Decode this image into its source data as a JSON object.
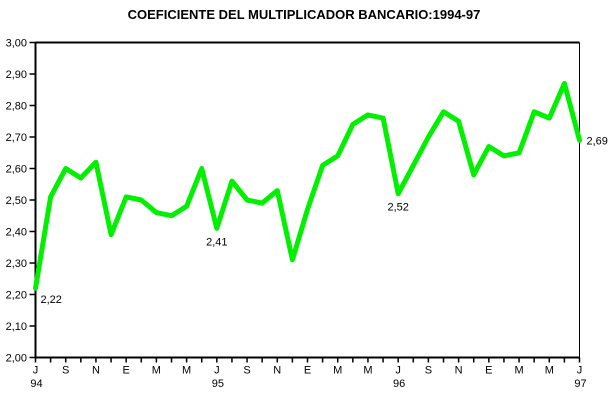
{
  "colors": {
    "background": "#ffffff",
    "axis": "#000000",
    "text": "#000000",
    "series_line": "#00f000"
  },
  "chart_data": {
    "type": "line",
    "title": "COEFICIENTE DEL MULTIPLICADOR BANCARIO:1994-97",
    "xlabel": "",
    "ylabel": "",
    "ylim": [
      2.0,
      3.0
    ],
    "grid": false,
    "legend": "none",
    "decimal_separator": ",",
    "series": [
      {
        "name": "coeficiente-multiplicador-bancario",
        "color": "#00f000",
        "x": [
          "Jul-94",
          "Ago-94",
          "Sep-94",
          "Oct-94",
          "Nov-94",
          "Dic-94",
          "Ene-95",
          "Feb-95",
          "Mar-95",
          "Abr-95",
          "May-95",
          "Jun-95",
          "Jul-95",
          "Ago-95",
          "Sep-95",
          "Oct-95",
          "Nov-95",
          "Dic-95",
          "Ene-96",
          "Feb-96",
          "Mar-96",
          "Abr-96",
          "May-96",
          "Jun-96",
          "Jul-96",
          "Ago-96",
          "Sep-96",
          "Oct-96",
          "Nov-96",
          "Dic-96",
          "Ene-97",
          "Feb-97",
          "Mar-97",
          "Abr-97",
          "May-97",
          "Jun-97",
          "Jul-97"
        ],
        "values": [
          2.22,
          2.51,
          2.6,
          2.57,
          2.62,
          2.39,
          2.51,
          2.5,
          2.46,
          2.45,
          2.48,
          2.6,
          2.41,
          2.56,
          2.5,
          2.49,
          2.53,
          2.31,
          2.47,
          2.61,
          2.64,
          2.74,
          2.77,
          2.76,
          2.52,
          2.61,
          2.7,
          2.78,
          2.75,
          2.58,
          2.67,
          2.64,
          2.65,
          2.78,
          2.76,
          2.87,
          2.69
        ]
      }
    ],
    "y_ticks": [
      {
        "value": 3.0,
        "label": "3,00"
      },
      {
        "value": 2.9,
        "label": "2,90"
      },
      {
        "value": 2.8,
        "label": "2,80"
      },
      {
        "value": 2.7,
        "label": "2,70"
      },
      {
        "value": 2.6,
        "label": "2,60"
      },
      {
        "value": 2.5,
        "label": "2,50"
      },
      {
        "value": 2.4,
        "label": "2,40"
      },
      {
        "value": 2.3,
        "label": "2,30"
      },
      {
        "value": 2.2,
        "label": "2,20"
      },
      {
        "value": 2.1,
        "label": "2,10"
      },
      {
        "value": 2.0,
        "label": "2,00"
      }
    ],
    "x_tick_label_step": 2,
    "x_tick_labels": [
      "J",
      "S",
      "N",
      "E",
      "M",
      "M",
      "J",
      "S",
      "N",
      "E",
      "M",
      "M",
      "J",
      "S",
      "N",
      "E",
      "M",
      "M",
      "J"
    ],
    "year_labels": [
      {
        "label": "94",
        "month_index": 0
      },
      {
        "label": "95",
        "month_index": 12
      },
      {
        "label": "96",
        "month_index": 24
      },
      {
        "label": "97",
        "month_index": 36
      }
    ],
    "annotations": [
      {
        "text": "2,22",
        "month_index": 0,
        "placement": "below-right"
      },
      {
        "text": "2,41",
        "month_index": 12,
        "placement": "below"
      },
      {
        "text": "2,52",
        "month_index": 24,
        "placement": "below"
      },
      {
        "text": "2,69",
        "month_index": 36,
        "placement": "right"
      }
    ]
  }
}
